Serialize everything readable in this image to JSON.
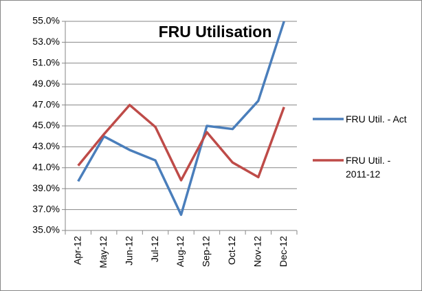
{
  "chart_data": {
    "type": "line",
    "title": "FRU Utilisation",
    "categories": [
      "Apr-12",
      "May-12",
      "Jun-12",
      "Jul-12",
      "Aug-12",
      "Sep-12",
      "Oct-12",
      "Nov-12",
      "Dec-12"
    ],
    "series": [
      {
        "name": "FRU Util. - Act",
        "color": "#4a7ebb",
        "values": [
          39.7,
          44.0,
          42.7,
          41.7,
          36.5,
          45.0,
          44.7,
          47.4,
          55.0
        ]
      },
      {
        "name": "FRU Util. - 2011-12",
        "color": "#be4b48",
        "values": [
          41.2,
          44.2,
          47.0,
          44.9,
          39.8,
          44.4,
          41.5,
          40.1,
          46.8
        ]
      }
    ],
    "ylim": [
      35,
      55
    ],
    "yticks": [
      {
        "value": 35,
        "label": "35.0%"
      },
      {
        "value": 37,
        "label": "37.0%"
      },
      {
        "value": 39,
        "label": "39.0%"
      },
      {
        "value": 41,
        "label": "41.0%"
      },
      {
        "value": 43,
        "label": "43.0%"
      },
      {
        "value": 45,
        "label": "45.0%"
      },
      {
        "value": 47,
        "label": "47.0%"
      },
      {
        "value": 49,
        "label": "49.0%"
      },
      {
        "value": 51,
        "label": "51.0%"
      },
      {
        "value": 53,
        "label": "53.0%"
      },
      {
        "value": 55,
        "label": "55.0%"
      }
    ],
    "grid": true,
    "legend": "right"
  }
}
